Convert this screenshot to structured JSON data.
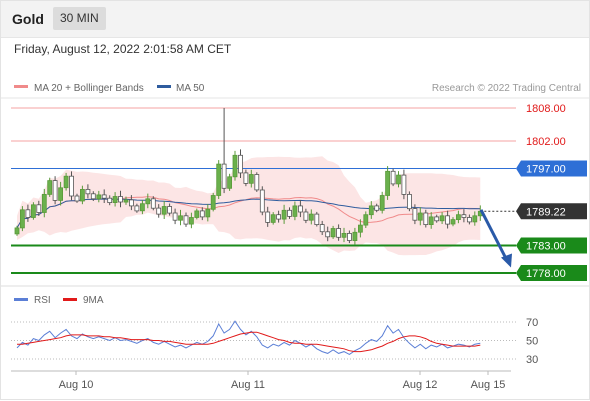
{
  "header": {
    "instrument": "Gold",
    "timeframe": "30 MIN"
  },
  "timestamp": "Friday, August 12, 2022 2:01:58 AM CET",
  "price_legend": [
    {
      "label": "MA 20 + Bollinger Bands",
      "color": "#f08a8a"
    },
    {
      "label": "MA 50",
      "color": "#2e5c9e"
    }
  ],
  "copyright": "Research © 2022 Trading Central",
  "price_levels": [
    {
      "label": "1808.00",
      "value": 1808.0,
      "kind": "resistance"
    },
    {
      "label": "1802.00",
      "value": 1802.0,
      "kind": "resistance"
    },
    {
      "label": "1797.00",
      "value": 1797.0,
      "kind": "pivot"
    },
    {
      "label": "1789.22",
      "value": 1789.22,
      "kind": "last"
    },
    {
      "label": "1783.00",
      "value": 1783.0,
      "kind": "support"
    },
    {
      "label": "1778.00",
      "value": 1778.0,
      "kind": "support"
    }
  ],
  "rsi_legend": [
    {
      "label": "RSI",
      "color": "#5b7fd6"
    },
    {
      "label": "9MA",
      "color": "#e11a1a"
    }
  ],
  "rsi_levels": [
    "70",
    "50",
    "30"
  ],
  "x_labels": [
    "Aug 10",
    "Aug 11",
    "Aug 12",
    "Aug 15"
  ],
  "chart_data": {
    "type": "candlestick",
    "instrument": "Gold",
    "timeframe": "30 MIN",
    "price_range": [
      1776,
      1810
    ],
    "levels": [
      1808.0,
      1802.0,
      1797.0,
      1783.0,
      1778.0
    ],
    "last_price": 1789.22,
    "forecast_arrow": {
      "from": 1789.5,
      "to": 1779.0
    },
    "closes": [
      1786.2,
      1789.5,
      1788.1,
      1790.4,
      1789.0,
      1792.3,
      1794.8,
      1791.2,
      1793.5,
      1795.6,
      1792.0,
      1791.1,
      1793.2,
      1792.4,
      1791.5,
      1792.2,
      1791.6,
      1790.8,
      1791.9,
      1790.9,
      1791.3,
      1790.2,
      1789.3,
      1790.6,
      1791.5,
      1789.8,
      1788.7,
      1790.1,
      1788.9,
      1787.6,
      1788.4,
      1786.9,
      1788.1,
      1789.3,
      1788.2,
      1789.6,
      1792.1,
      1797.8,
      1793.4,
      1795.5,
      1799.4,
      1796.2,
      1794.3,
      1795.9,
      1793.1,
      1789.1,
      1787.2,
      1788.6,
      1787.8,
      1789.4,
      1788.3,
      1790.2,
      1789.1,
      1787.6,
      1788.7,
      1786.8,
      1785.5,
      1784.6,
      1786.1,
      1784.5,
      1785.2,
      1783.9,
      1785.4,
      1786.7,
      1788.6,
      1790.2,
      1789.4,
      1792.1,
      1796.5,
      1794.2,
      1795.8,
      1792.3,
      1789.7,
      1787.6,
      1788.9,
      1786.8,
      1788.2,
      1787.5,
      1788.4,
      1786.9,
      1787.7,
      1788.6,
      1788.1,
      1787.3,
      1788.4,
      1789.22
    ],
    "rsi": [
      42,
      48,
      45,
      52,
      50,
      56,
      60,
      53,
      58,
      62,
      55,
      52,
      57,
      54,
      52,
      54,
      52,
      50,
      53,
      50,
      51,
      49,
      47,
      50,
      52,
      48,
      46,
      49,
      46,
      43,
      45,
      42,
      45,
      48,
      46,
      49,
      55,
      68,
      58,
      62,
      71,
      62,
      56,
      60,
      54,
      45,
      42,
      46,
      44,
      48,
      45,
      50,
      47,
      43,
      46,
      41,
      38,
      36,
      40,
      36,
      38,
      35,
      39,
      42,
      47,
      51,
      49,
      55,
      66,
      58,
      62,
      53,
      47,
      42,
      46,
      41,
      45,
      43,
      46,
      42,
      44,
      46,
      45,
      43,
      46,
      47
    ],
    "rsi_9ma": [
      46,
      46,
      47,
      48,
      49,
      50,
      51,
      52,
      53,
      55,
      56,
      56,
      56,
      55,
      55,
      55,
      54,
      54,
      53,
      53,
      52,
      51,
      51,
      51,
      51,
      50,
      50,
      49,
      49,
      48,
      47,
      46,
      46,
      46,
      46,
      46,
      47,
      49,
      51,
      53,
      55,
      57,
      58,
      59,
      59,
      57,
      55,
      53,
      51,
      50,
      48,
      47,
      47,
      46,
      46,
      46,
      45,
      44,
      43,
      42,
      41,
      39,
      38,
      38,
      39,
      40,
      42,
      44,
      47,
      49,
      52,
      54,
      55,
      55,
      54,
      52,
      49,
      47,
      46,
      45,
      44,
      44,
      44,
      44,
      44,
      45
    ],
    "rsi_ylim": [
      20,
      80
    ]
  }
}
